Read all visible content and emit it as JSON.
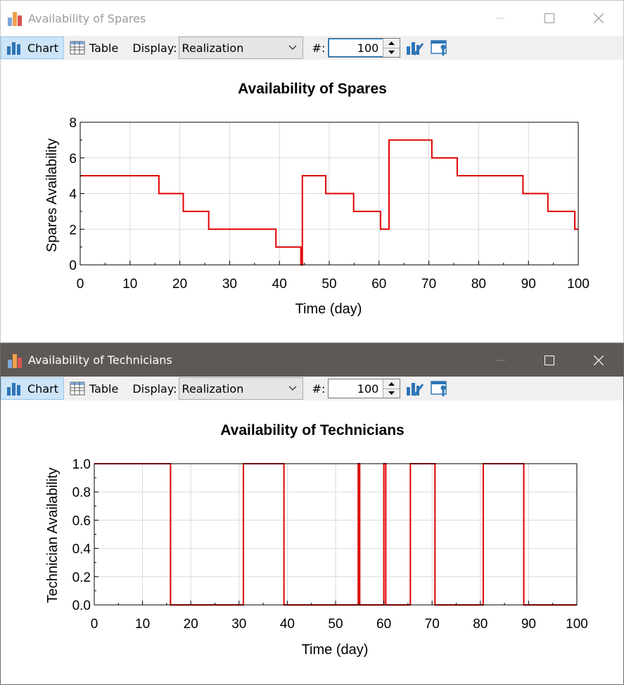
{
  "colors": {
    "series": "#e00000",
    "icon_blue": "#2e75b6",
    "grid": "#d9d9d9",
    "titlebar_active": "#5e5955"
  },
  "windows": [
    {
      "title": "Availability of Spares",
      "active": false,
      "toolbar": {
        "chart_label": "Chart",
        "table_label": "Table",
        "display_label": "Display:",
        "display_value": "Realization",
        "hash_label": "#:",
        "realization_number": "100",
        "icons": [
          "chart-properties-icon",
          "window-settings-icon"
        ]
      }
    },
    {
      "title": "Availability of Technicians",
      "active": true,
      "toolbar": {
        "chart_label": "Chart",
        "table_label": "Table",
        "display_label": "Display:",
        "display_value": "Realization",
        "hash_label": "#:",
        "realization_number": "100",
        "icons": [
          "chart-properties-icon",
          "window-settings-icon"
        ]
      }
    }
  ],
  "chart_data": [
    {
      "type": "line",
      "title": "Availability of Spares",
      "xlabel": "Time (day)",
      "ylabel": "Spares Availability",
      "xlim": [
        0,
        100
      ],
      "ylim": [
        0,
        8
      ],
      "xticks": [
        "0",
        "10",
        "20",
        "30",
        "40",
        "50",
        "60",
        "70",
        "80",
        "90",
        "100"
      ],
      "yticks": [
        "0",
        "2",
        "4",
        "6",
        "8"
      ],
      "grid": true,
      "step": true,
      "series": [
        {
          "x": [
            0,
            15.8,
            20.7,
            25.8,
            39.3,
            44.3,
            44.6,
            49.3,
            54.9,
            60.3,
            62.0,
            70.6,
            75.7,
            88.9,
            93.9,
            99.3,
            100
          ],
          "y": [
            5,
            4,
            3,
            2,
            1,
            0,
            5,
            4,
            3,
            2,
            7,
            6,
            5,
            4,
            3,
            2,
            2
          ]
        }
      ]
    },
    {
      "type": "line",
      "title": "Availability of Technicians",
      "xlabel": "Time (day)",
      "ylabel": "Technician Availability",
      "xlim": [
        0,
        100
      ],
      "ylim": [
        0,
        1
      ],
      "xticks": [
        "0",
        "10",
        "20",
        "30",
        "40",
        "50",
        "60",
        "70",
        "80",
        "90",
        "100"
      ],
      "yticks": [
        "0.0",
        "0.2",
        "0.4",
        "0.6",
        "0.8",
        "1.0"
      ],
      "grid": true,
      "step": true,
      "series": [
        {
          "x": [
            0,
            15.8,
            30.9,
            39.3,
            54.7,
            55.0,
            60.0,
            60.4,
            65.5,
            70.6,
            80.6,
            89.0,
            100
          ],
          "y": [
            1,
            0,
            1,
            0,
            1,
            0,
            1,
            0,
            1,
            0,
            1,
            0,
            0
          ]
        }
      ]
    }
  ]
}
